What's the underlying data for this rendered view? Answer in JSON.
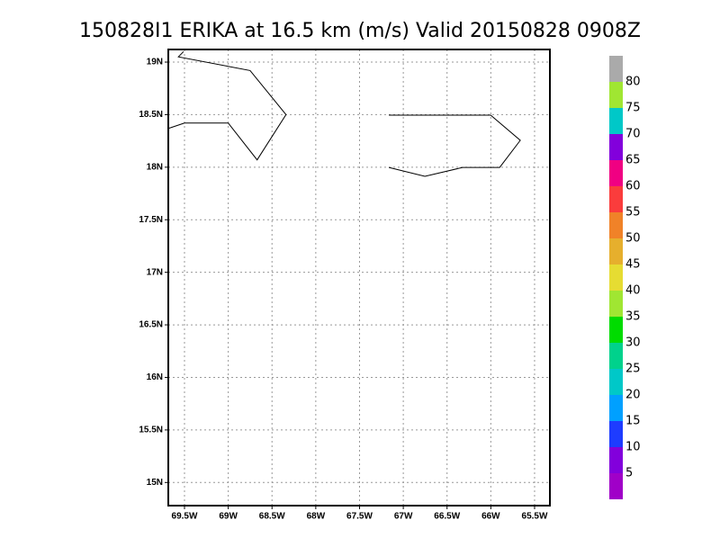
{
  "title": "150828I1 ERIKA at 16.5 km (m/s) Valid 20150828 0908Z",
  "map": {
    "xlim": [
      -69.685,
      -65.325
    ],
    "ylim": [
      14.78,
      19.12
    ],
    "xticks": [
      {
        "value": -69.5,
        "label": "69.5W"
      },
      {
        "value": -69,
        "label": "69W"
      },
      {
        "value": -68.5,
        "label": "68.5W"
      },
      {
        "value": -68,
        "label": "68W"
      },
      {
        "value": -67.5,
        "label": "67.5W"
      },
      {
        "value": -67,
        "label": "67W"
      },
      {
        "value": -66.5,
        "label": "66.5W"
      },
      {
        "value": -66,
        "label": "66W"
      },
      {
        "value": -65.5,
        "label": "65.5W"
      }
    ],
    "yticks": [
      {
        "value": 15,
        "label": "15N"
      },
      {
        "value": 15.5,
        "label": "15.5N"
      },
      {
        "value": 16,
        "label": "16N"
      },
      {
        "value": 16.5,
        "label": "16.5N"
      },
      {
        "value": 17,
        "label": "17N"
      },
      {
        "value": 17.5,
        "label": "17.5N"
      },
      {
        "value": 18,
        "label": "18N"
      },
      {
        "value": 18.5,
        "label": "18.5N"
      },
      {
        "value": 19,
        "label": "19N"
      }
    ],
    "grid": true,
    "coastlines": [
      [
        [
          -69.51,
          19.1
        ],
        [
          -69.57,
          19.05
        ],
        [
          -68.75,
          18.92
        ],
        [
          -68.34,
          18.5
        ],
        [
          -68.67,
          18.07
        ],
        [
          -69.0,
          18.42
        ],
        [
          -69.5,
          18.42
        ],
        [
          -69.68,
          18.37
        ]
      ],
      [
        [
          -67.165,
          18.495
        ],
        [
          -66.002,
          18.495
        ],
        [
          -65.663,
          18.255
        ],
        [
          -65.899,
          17.998
        ],
        [
          -66.321,
          17.998
        ],
        [
          -66.753,
          17.913
        ],
        [
          -67.165,
          17.998
        ]
      ]
    ]
  },
  "colorbar": {
    "levels": [
      5,
      10,
      15,
      20,
      25,
      30,
      35,
      40,
      45,
      50,
      55,
      60,
      65,
      70,
      75,
      80
    ],
    "colors": [
      "#a000c8",
      "#8200dc",
      "#1e3cff",
      "#00a0ff",
      "#00c8c8",
      "#00d28c",
      "#00dc00",
      "#a0e632",
      "#e6dc32",
      "#e6af2d",
      "#f08228",
      "#fa3c3c",
      "#f00082",
      "#8200dc",
      "#00c8c8",
      "#a0e632",
      "#aaaaaa"
    ]
  }
}
